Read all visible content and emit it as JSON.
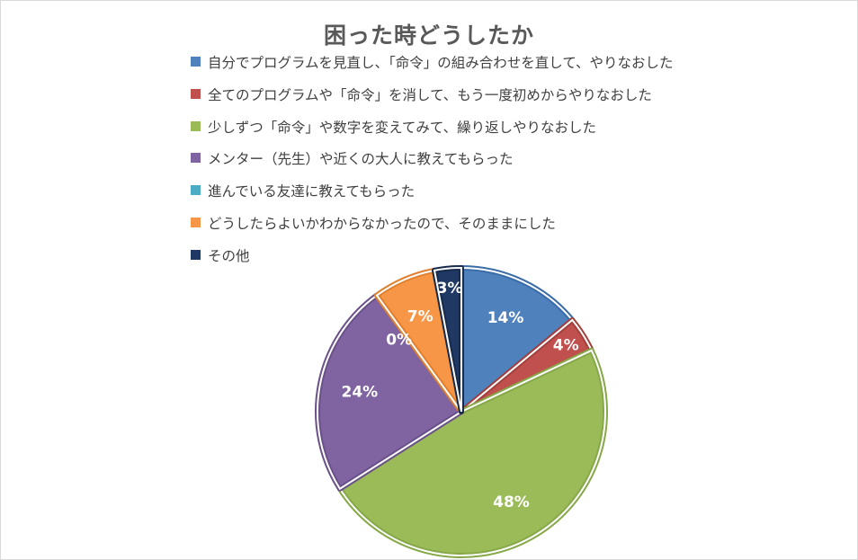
{
  "chart_data": {
    "type": "pie",
    "title": "困った時どうしたか",
    "legend_position": "top",
    "categories": [
      "自分でプログラムを見直し、「命令」の組み合わせを直して、やりなおした",
      "全てのプログラムや「命令」を消して、もう一度初めからやりなおした",
      "少しずつ「命令」や数字を変えてみて、繰り返しやりなおした",
      "メンター（先生）や近くの大人に教えてもらった",
      "進んでいる友達に教えてもらった",
      "どうしたらよいかわからなかったので、そのままにした",
      "その他"
    ],
    "values": [
      14,
      4,
      48,
      24,
      0,
      7,
      3
    ],
    "data_labels": [
      "14%",
      "4%",
      "48%",
      "24%",
      "0%",
      "7%",
      "3%"
    ],
    "colors": [
      "#4f81bd",
      "#c0504d",
      "#9bbb59",
      "#8064a2",
      "#4bacc6",
      "#f79646",
      "#1f3864"
    ],
    "border_colors": [
      "#3a6ca8",
      "#a33f3c",
      "#86a848",
      "#6a5089",
      "#3a95ad",
      "#e07f2e",
      "#162a4c"
    ]
  }
}
